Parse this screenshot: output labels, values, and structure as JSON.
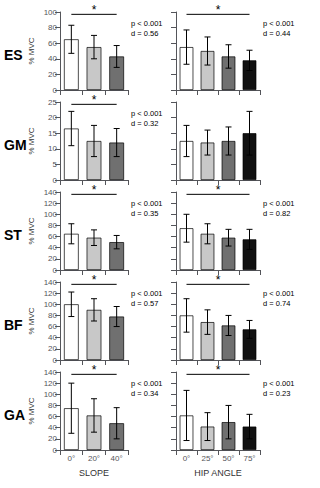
{
  "chart_data": [
    {
      "type": "bar",
      "title": "ES",
      "categories": [
        null,
        null,
        null
      ],
      "values": [
        65,
        55,
        43
      ],
      "errors": [
        18,
        15,
        14
      ],
      "colors": [
        "white",
        "#c8c8c8",
        "#707070"
      ],
      "ylim": [
        0,
        100
      ],
      "yticks": [
        0,
        20,
        40,
        60,
        80,
        100
      ],
      "ylabel": "% MVC",
      "grid": false,
      "tick_labels": "y",
      "bracket_label": "*",
      "annotation": "p < 0.001\nd = 0.56"
    },
    {
      "type": "bar",
      "categories": [
        null,
        null,
        null,
        null
      ],
      "values": [
        55,
        50,
        43,
        38
      ],
      "errors": [
        22,
        18,
        15,
        13
      ],
      "colors": [
        "white",
        "#c8c8c8",
        "#707070",
        "#111111"
      ],
      "ylim": [
        0,
        100
      ],
      "yticks": [
        0,
        20,
        40,
        60,
        80,
        100
      ],
      "grid": false,
      "tick_labels": false,
      "bracket_label": "*",
      "annotation": "p < 0.001\nd = 0.44"
    },
    {
      "type": "bar",
      "title": "GM",
      "categories": [
        null,
        null,
        null
      ],
      "values": [
        16.5,
        12.5,
        12
      ],
      "errors": [
        5.5,
        5,
        4.5
      ],
      "colors": [
        "white",
        "#c8c8c8",
        "#707070"
      ],
      "ylim": [
        0,
        25
      ],
      "yticks": [
        0,
        5,
        10,
        15,
        20,
        25
      ],
      "ylabel": "% MVC",
      "grid": false,
      "tick_labels": "y",
      "bracket_label": "*",
      "annotation": "p < 0.001\nd = 0.32"
    },
    {
      "type": "bar",
      "categories": [
        null,
        null,
        null,
        null
      ],
      "values": [
        12.5,
        12,
        12.5,
        15
      ],
      "errors": [
        5,
        4,
        4.5,
        7
      ],
      "colors": [
        "white",
        "#c8c8c8",
        "#707070",
        "#111111"
      ],
      "ylim": [
        0,
        25
      ],
      "yticks": [
        0,
        5,
        10,
        15,
        20,
        25
      ],
      "grid": false,
      "tick_labels": false
    },
    {
      "type": "bar",
      "title": "ST",
      "categories": [
        null,
        null,
        null
      ],
      "values": [
        65,
        58,
        50
      ],
      "errors": [
        18,
        14,
        12
      ],
      "colors": [
        "white",
        "#c8c8c8",
        "#707070"
      ],
      "ylim": [
        0,
        140
      ],
      "yticks": [
        0,
        20,
        40,
        60,
        80,
        100,
        120,
        140
      ],
      "ylabel": "% MVC",
      "grid": false,
      "tick_labels": "y",
      "bracket_label": "*",
      "annotation": "p < 0.001\nd = 0.35"
    },
    {
      "type": "bar",
      "categories": [
        null,
        null,
        null,
        null
      ],
      "values": [
        75,
        65,
        58,
        55
      ],
      "errors": [
        25,
        18,
        15,
        18
      ],
      "colors": [
        "white",
        "#c8c8c8",
        "#707070",
        "#111111"
      ],
      "ylim": [
        0,
        140
      ],
      "yticks": [
        0,
        20,
        40,
        60,
        80,
        100,
        120,
        140
      ],
      "grid": false,
      "tick_labels": false,
      "bracket_label": "*",
      "annotation": "p < 0.001\nd = 0.82"
    },
    {
      "type": "bar",
      "title": "BF",
      "categories": [
        null,
        null,
        null
      ],
      "values": [
        100,
        90,
        78
      ],
      "errors": [
        22,
        20,
        18
      ],
      "colors": [
        "white",
        "#c8c8c8",
        "#707070"
      ],
      "ylim": [
        0,
        140
      ],
      "yticks": [
        0,
        20,
        40,
        60,
        80,
        100,
        120,
        140
      ],
      "ylabel": "% MVC",
      "grid": false,
      "tick_labels": "y",
      "bracket_label": "*",
      "annotation": "p < 0.001\nd = 0.57"
    },
    {
      "type": "bar",
      "categories": [
        null,
        null,
        null,
        null
      ],
      "values": [
        80,
        68,
        62,
        55
      ],
      "errors": [
        30,
        22,
        18,
        16
      ],
      "colors": [
        "white",
        "#c8c8c8",
        "#707070",
        "#111111"
      ],
      "ylim": [
        0,
        140
      ],
      "yticks": [
        0,
        20,
        40,
        60,
        80,
        100,
        120,
        140
      ],
      "grid": false,
      "tick_labels": false,
      "bracket_label": "*",
      "annotation": "p < 0.001\nd = 0.74"
    },
    {
      "type": "bar",
      "title": "GA",
      "categories": [
        "0°",
        "20°",
        "40°"
      ],
      "values": [
        75,
        62,
        48
      ],
      "errors": [
        45,
        30,
        28
      ],
      "colors": [
        "white",
        "#c8c8c8",
        "#707070"
      ],
      "ylim": [
        0,
        140
      ],
      "yticks": [
        0,
        20,
        40,
        60,
        80,
        100,
        120,
        140
      ],
      "xlabel": "SLOPE",
      "ylabel": "% MVC",
      "grid": false,
      "bracket_label": "*",
      "annotation": "p < 0.001\nd = 0.34"
    },
    {
      "type": "bar",
      "categories": [
        "0°",
        "25°",
        "50°",
        "75°"
      ],
      "values": [
        62,
        42,
        50,
        42
      ],
      "errors": [
        45,
        25,
        30,
        22
      ],
      "colors": [
        "white",
        "#c8c8c8",
        "#707070",
        "#111111"
      ],
      "ylim": [
        0,
        140
      ],
      "yticks": [
        0,
        20,
        40,
        60,
        80,
        100,
        120,
        140
      ],
      "xlabel": "HIP ANGLE",
      "grid": false,
      "tick_labels": "x",
      "bracket_label": "*",
      "annotation": "p < 0.001\nd = 0.23"
    }
  ]
}
